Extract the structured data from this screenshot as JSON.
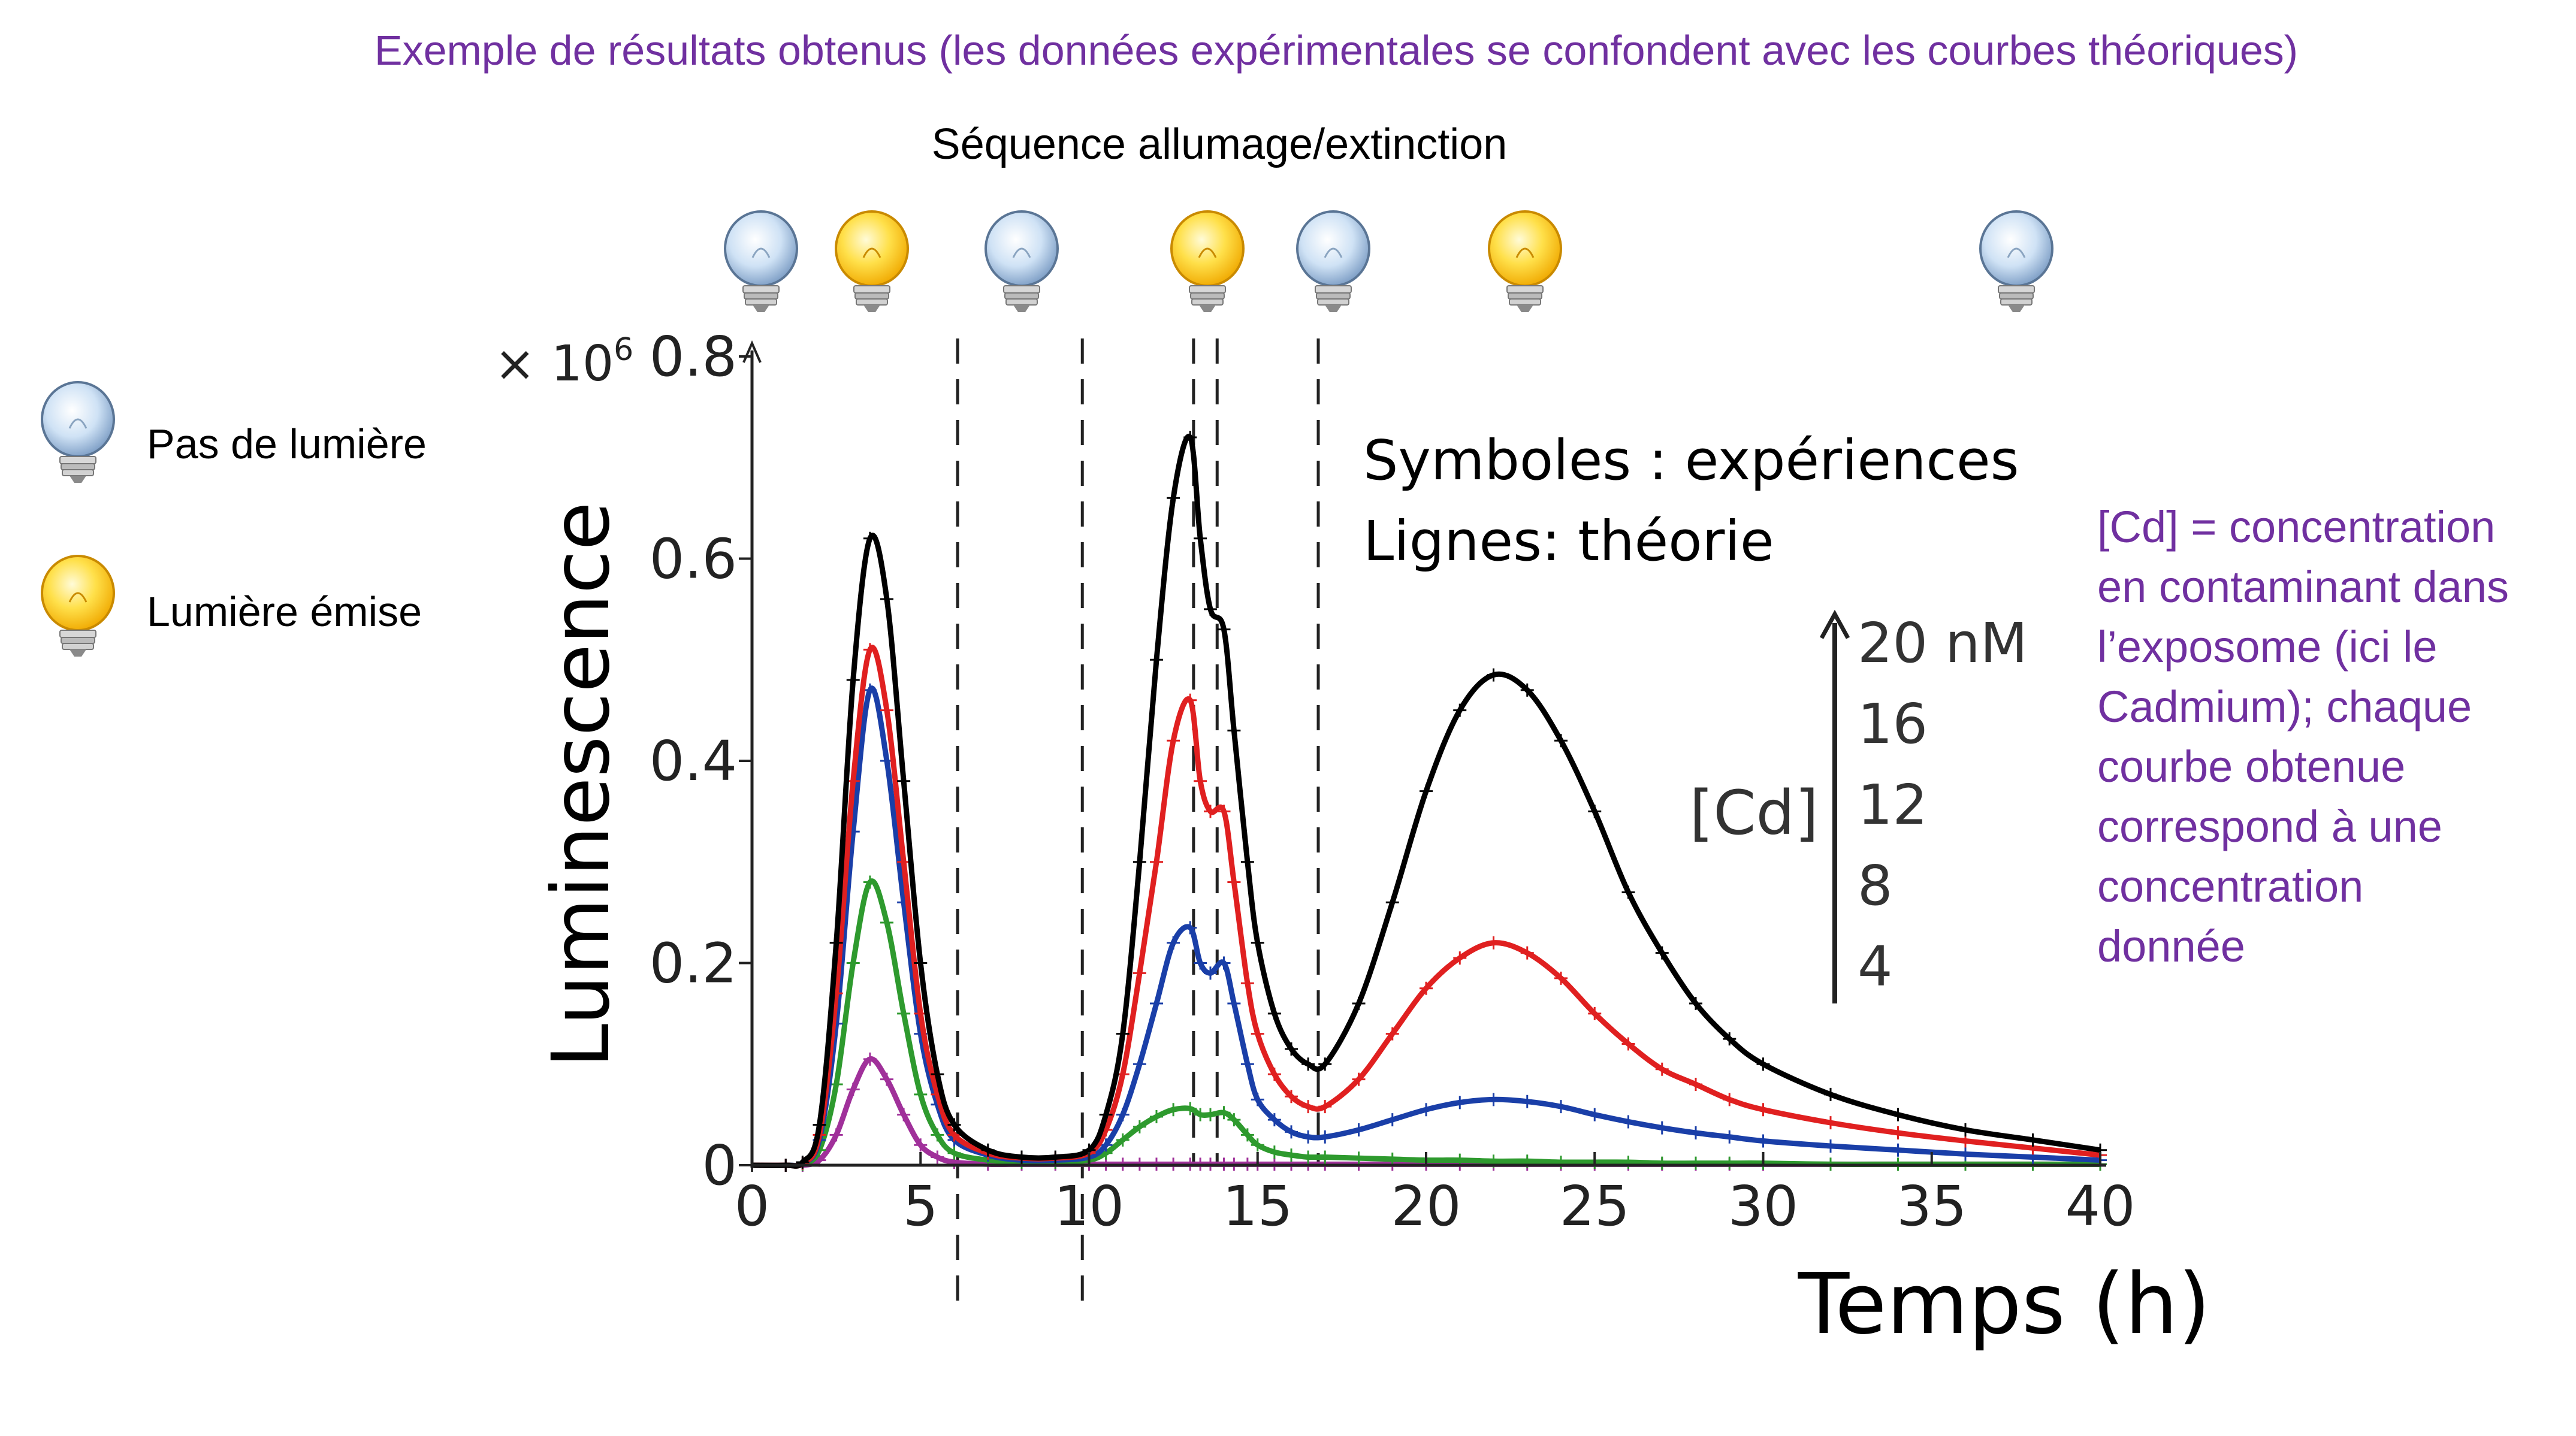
{
  "heading": "Exemple de résultats obtenus (les données expérimentales se confondent avec les courbes théoriques)",
  "sequence_title": "Séquence allumage/extinction",
  "legend_bulbs": [
    {
      "label": "Pas de lumière",
      "icon": "bulb-off-icon"
    },
    {
      "label": "Lumière émise",
      "icon": "bulb-on-icon"
    }
  ],
  "bulb_sequence": [
    "off",
    "on",
    "off",
    "on",
    "off",
    "on",
    "off"
  ],
  "bulb_colors": {
    "off": "#b9d4ef",
    "on": "#ffd21a"
  },
  "annotation": {
    "symbols": "Symboles : expériences",
    "lines": "Lignes: théorie"
  },
  "cd_scale": {
    "label": "[Cd]",
    "values": [
      "20 nM",
      "16",
      "12",
      "8",
      "4"
    ]
  },
  "side_note": [
    "[Cd] = concentration",
    "en contaminant dans",
    "l’exposome (ici le",
    "Cadmium); chaque",
    "courbe obtenue",
    "correspond à une",
    "concentration",
    "donnée"
  ],
  "chart_data": {
    "type": "line",
    "title": "",
    "xlabel": "Temps (h)",
    "ylabel": "Luminescence",
    "yscale_label": "× 10",
    "yscale_exponent": "6",
    "xlim": [
      0,
      40
    ],
    "ylim": [
      0,
      0.8
    ],
    "xticks": [
      0,
      5,
      10,
      15,
      20,
      25,
      30,
      35,
      40
    ],
    "xtick_labels": [
      "0",
      "5",
      "10",
      "15",
      "20",
      "25",
      "30",
      "35",
      "40"
    ],
    "yticks": [
      0,
      0.2,
      0.4,
      0.6,
      0.8
    ],
    "ytick_labels": [
      "0",
      "0.2",
      "0.4",
      "0.6",
      "0.8"
    ],
    "grid": false,
    "vlines": [
      6.1,
      9.8,
      13.1,
      13.8,
      16.8
    ],
    "x": [
      0,
      1,
      1.5,
      2,
      2.5,
      3,
      3.5,
      4,
      4.5,
      5,
      5.5,
      6,
      7,
      8,
      9,
      10,
      10.5,
      11,
      11.5,
      12,
      12.5,
      13,
      13.3,
      13.6,
      14,
      14.3,
      14.7,
      15,
      15.5,
      16,
      16.5,
      17,
      18,
      19,
      20,
      21,
      22,
      23,
      24,
      25,
      26,
      27,
      28,
      29,
      30,
      32,
      34,
      36,
      38,
      40
    ],
    "series": [
      {
        "color": "#000000",
        "values": [
          0,
          0,
          0.003,
          0.04,
          0.22,
          0.48,
          0.62,
          0.56,
          0.38,
          0.2,
          0.09,
          0.04,
          0.015,
          0.008,
          0.008,
          0.015,
          0.05,
          0.13,
          0.3,
          0.5,
          0.66,
          0.72,
          0.62,
          0.55,
          0.53,
          0.43,
          0.3,
          0.22,
          0.15,
          0.115,
          0.1,
          0.1,
          0.16,
          0.26,
          0.37,
          0.45,
          0.485,
          0.47,
          0.42,
          0.35,
          0.27,
          0.21,
          0.16,
          0.125,
          0.1,
          0.07,
          0.05,
          0.035,
          0.025,
          0.015
        ]
      },
      {
        "color": "#e02020",
        "values": [
          0,
          0,
          0.002,
          0.03,
          0.17,
          0.38,
          0.51,
          0.45,
          0.3,
          0.15,
          0.07,
          0.03,
          0.012,
          0.007,
          0.007,
          0.012,
          0.035,
          0.09,
          0.19,
          0.3,
          0.42,
          0.46,
          0.38,
          0.35,
          0.35,
          0.28,
          0.18,
          0.13,
          0.09,
          0.068,
          0.058,
          0.058,
          0.085,
          0.13,
          0.175,
          0.205,
          0.22,
          0.21,
          0.185,
          0.15,
          0.12,
          0.095,
          0.08,
          0.065,
          0.055,
          0.042,
          0.032,
          0.024,
          0.017,
          0.01
        ]
      },
      {
        "color": "#1a3fa8",
        "values": [
          0,
          0,
          0.002,
          0.025,
          0.14,
          0.33,
          0.47,
          0.4,
          0.26,
          0.13,
          0.06,
          0.025,
          0.01,
          0.005,
          0.005,
          0.008,
          0.02,
          0.05,
          0.1,
          0.16,
          0.22,
          0.235,
          0.2,
          0.19,
          0.2,
          0.16,
          0.1,
          0.065,
          0.045,
          0.033,
          0.028,
          0.028,
          0.035,
          0.045,
          0.055,
          0.062,
          0.065,
          0.063,
          0.058,
          0.05,
          0.043,
          0.037,
          0.032,
          0.028,
          0.024,
          0.019,
          0.015,
          0.011,
          0.008,
          0.005
        ]
      },
      {
        "color": "#2e9a2e",
        "values": [
          0,
          0,
          0.001,
          0.015,
          0.08,
          0.2,
          0.28,
          0.24,
          0.15,
          0.07,
          0.03,
          0.012,
          0.005,
          0.003,
          0.003,
          0.005,
          0.012,
          0.025,
          0.038,
          0.048,
          0.055,
          0.056,
          0.05,
          0.05,
          0.052,
          0.045,
          0.03,
          0.02,
          0.013,
          0.01,
          0.008,
          0.008,
          0.007,
          0.006,
          0.005,
          0.005,
          0.004,
          0.004,
          0.003,
          0.003,
          0.003,
          0.002,
          0.002,
          0.002,
          0.002,
          0.001,
          0.001,
          0.001,
          0.001,
          0.001
        ]
      },
      {
        "color": "#a0309a",
        "values": [
          0,
          0,
          0,
          0.005,
          0.03,
          0.075,
          0.105,
          0.085,
          0.05,
          0.02,
          0.008,
          0.003,
          0.001,
          0.001,
          0.001,
          0.001,
          0.001,
          0.001,
          0.001,
          0.001,
          0.001,
          0.001,
          0.001,
          0.001,
          0.001,
          0.001,
          0.001,
          0.001,
          0.001,
          0.001,
          0.001,
          0.001,
          0.001,
          0.001,
          0.001,
          0.001,
          0.001,
          0.001,
          0.001,
          0.001,
          0.001,
          0.001,
          0.001,
          0.001,
          0.001,
          0.001,
          0.001,
          0.001,
          0.001,
          0.001
        ]
      }
    ]
  }
}
